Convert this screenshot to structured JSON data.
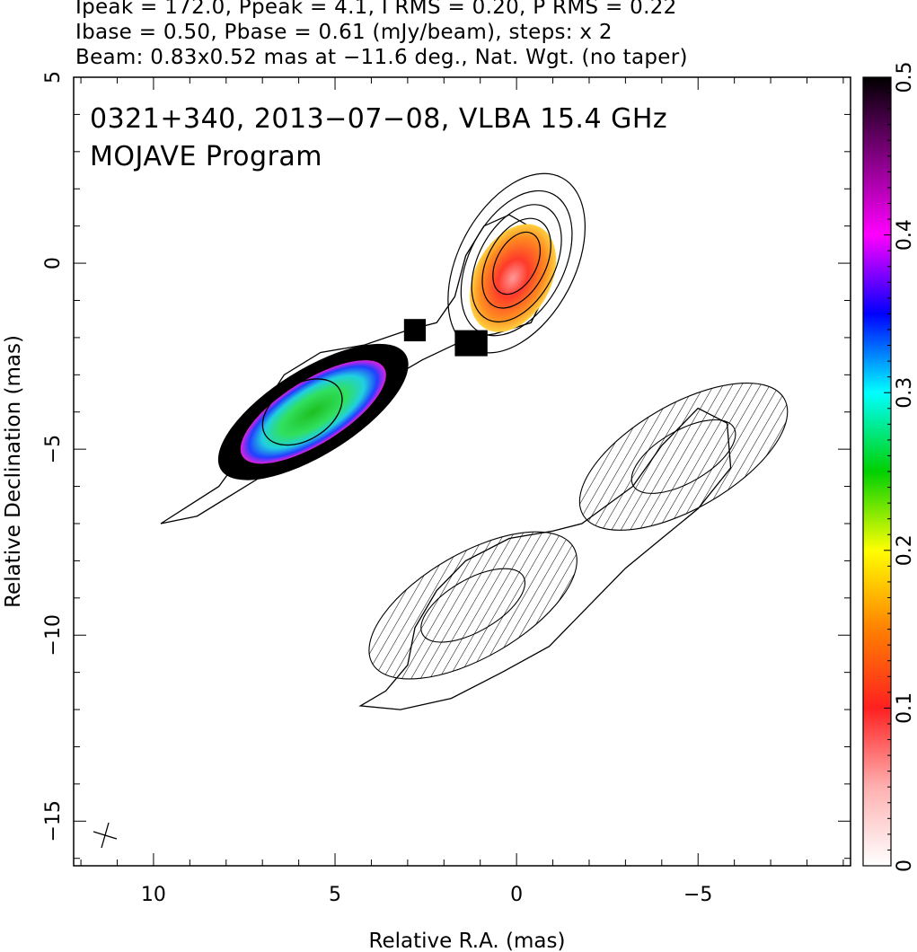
{
  "header": {
    "line1": "Ipeak = 172.0, Ppeak = 4.1, I RMS = 0.20, P RMS = 0.22",
    "line2": "Ibase = 0.50, Pbase = 0.61 (mJy/beam), steps: x 2",
    "line3": "Beam: 0.83x0.52 mas at −11.6 deg., Nat. Wgt. (no taper)"
  },
  "chart_data": {
    "type": "heatmap",
    "title_line1": "0321+340, 2013−07−08, VLBA 15.4 GHz",
    "title_line2": "MOJAVE Program",
    "xlabel": "Relative R.A. (mas)",
    "ylabel": "Relative Declination (mas)",
    "xlim": [
      12.2,
      -9.2
    ],
    "ylim": [
      -16.2,
      5.0
    ],
    "x_ticks": [
      {
        "v": 10,
        "label": "10"
      },
      {
        "v": 5,
        "label": "5"
      },
      {
        "v": 0,
        "label": "0"
      },
      {
        "v": -5,
        "label": "−5"
      }
    ],
    "y_ticks": [
      {
        "v": 5,
        "label": "5"
      },
      {
        "v": 0,
        "label": "0"
      },
      {
        "v": -5,
        "label": "−5"
      },
      {
        "v": -10,
        "label": "−10"
      },
      {
        "v": -15,
        "label": "−15"
      }
    ],
    "colorbar": {
      "range": [
        0,
        0.5
      ],
      "ticks": [
        {
          "v": 0,
          "label": "0"
        },
        {
          "v": 0.1,
          "label": "0.1"
        },
        {
          "v": 0.2,
          "label": "0.2"
        },
        {
          "v": 0.3,
          "label": "0.3"
        },
        {
          "v": 0.4,
          "label": "0.4"
        },
        {
          "v": 0.5,
          "label": "0.5"
        }
      ],
      "stops": [
        "#ffffff",
        "#ffb0b0",
        "#ff2020",
        "#ff8000",
        "#ffff00",
        "#00d000",
        "#00ffff",
        "#0000ff",
        "#ff00ff",
        "#800080",
        "#000000"
      ]
    },
    "core": {
      "x": 0,
      "y": 0,
      "contours": [
        [
          0.55,
          0.9
        ],
        [
          0.8,
          1.3
        ],
        [
          1.05,
          1.7
        ],
        [
          1.3,
          2.1
        ],
        [
          1.6,
          2.6
        ]
      ]
    },
    "jet_knot": {
      "x": 5.9,
      "y": -4.0
    },
    "outer_envelope": [
      [
        9.8,
        -7.0
      ],
      [
        9.0,
        -6.5
      ],
      [
        8.2,
        -6.0
      ],
      [
        7.6,
        -5.2
      ],
      [
        7.2,
        -4.2
      ],
      [
        6.4,
        -3.0
      ],
      [
        5.4,
        -2.4
      ],
      [
        4.2,
        -2.2
      ],
      [
        3.0,
        -1.8
      ],
      [
        2.2,
        -1.6
      ],
      [
        1.7,
        -0.9
      ],
      [
        1.4,
        0.2
      ],
      [
        0.9,
        1.0
      ],
      [
        0.2,
        1.3
      ],
      [
        -0.7,
        0.8
      ],
      [
        -0.9,
        -0.6
      ],
      [
        -0.4,
        -1.6
      ],
      [
        0.6,
        -1.9
      ],
      [
        1.3,
        -2.0
      ],
      [
        2.6,
        -2.6
      ],
      [
        4.0,
        -3.4
      ],
      [
        5.0,
        -4.2
      ],
      [
        6.0,
        -5.0
      ],
      [
        6.8,
        -5.6
      ],
      [
        7.8,
        -6.2
      ],
      [
        8.8,
        -6.8
      ],
      [
        9.8,
        -7.0
      ]
    ],
    "counterjet_envelope": [
      [
        4.3,
        -11.9
      ],
      [
        3.6,
        -11.5
      ],
      [
        3.0,
        -10.8
      ],
      [
        2.8,
        -9.8
      ],
      [
        2.2,
        -8.8
      ],
      [
        1.4,
        -8.0
      ],
      [
        0.2,
        -7.4
      ],
      [
        -1.0,
        -7.2
      ],
      [
        -1.8,
        -7.0
      ],
      [
        -3.2,
        -6.0
      ],
      [
        -4.0,
        -4.9
      ],
      [
        -5.0,
        -3.9
      ],
      [
        -5.8,
        -4.3
      ],
      [
        -5.9,
        -5.5
      ],
      [
        -5.0,
        -6.6
      ],
      [
        -4.0,
        -7.4
      ],
      [
        -3.0,
        -8.2
      ],
      [
        -2.0,
        -9.2
      ],
      [
        -0.9,
        -10.3
      ],
      [
        0.4,
        -11.0
      ],
      [
        1.8,
        -11.7
      ],
      [
        3.2,
        -12.0
      ],
      [
        4.3,
        -11.9
      ]
    ],
    "counterjet_knots": [
      {
        "x": 1.2,
        "y": -9.2
      },
      {
        "x": -4.6,
        "y": -5.2
      }
    ],
    "pol_core": {
      "x": 0.1,
      "y": -0.4
    },
    "pol_knot": {
      "x": 5.6,
      "y": -4.0
    }
  }
}
